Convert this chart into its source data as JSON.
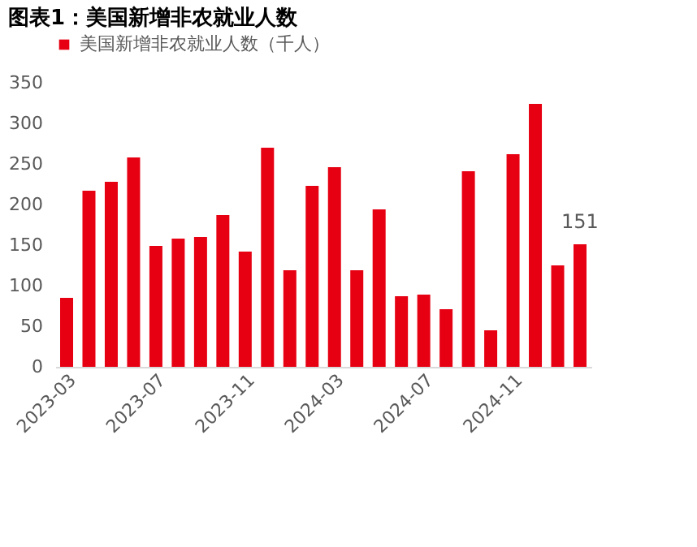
{
  "chart_data": {
    "type": "bar",
    "title": "图表1：美国新增非农就业人数",
    "categories": [
      "2023-03",
      null,
      null,
      null,
      "2023-07",
      null,
      null,
      null,
      "2023-11",
      null,
      null,
      null,
      "2024-03",
      null,
      null,
      null,
      "2024-07",
      null,
      null,
      null,
      "2024-11",
      null,
      null,
      null
    ],
    "series": [
      {
        "name": "美国新增非农就业人数（千人）",
        "color": "#e60012",
        "values": [
          85,
          217,
          228,
          258,
          149,
          158,
          160,
          187,
          142,
          270,
          119,
          223,
          246,
          119,
          194,
          87,
          89,
          71,
          241,
          45,
          262,
          324,
          125,
          151
        ],
        "value_labels": [
          null,
          null,
          null,
          null,
          null,
          null,
          null,
          null,
          null,
          null,
          null,
          null,
          null,
          null,
          null,
          null,
          null,
          null,
          null,
          null,
          null,
          null,
          null,
          "151"
        ]
      }
    ],
    "ylim": [
      0,
      350
    ],
    "yticks": [
      0,
      50,
      100,
      150,
      200,
      250,
      300,
      350
    ],
    "grid": false,
    "legend": "top"
  }
}
